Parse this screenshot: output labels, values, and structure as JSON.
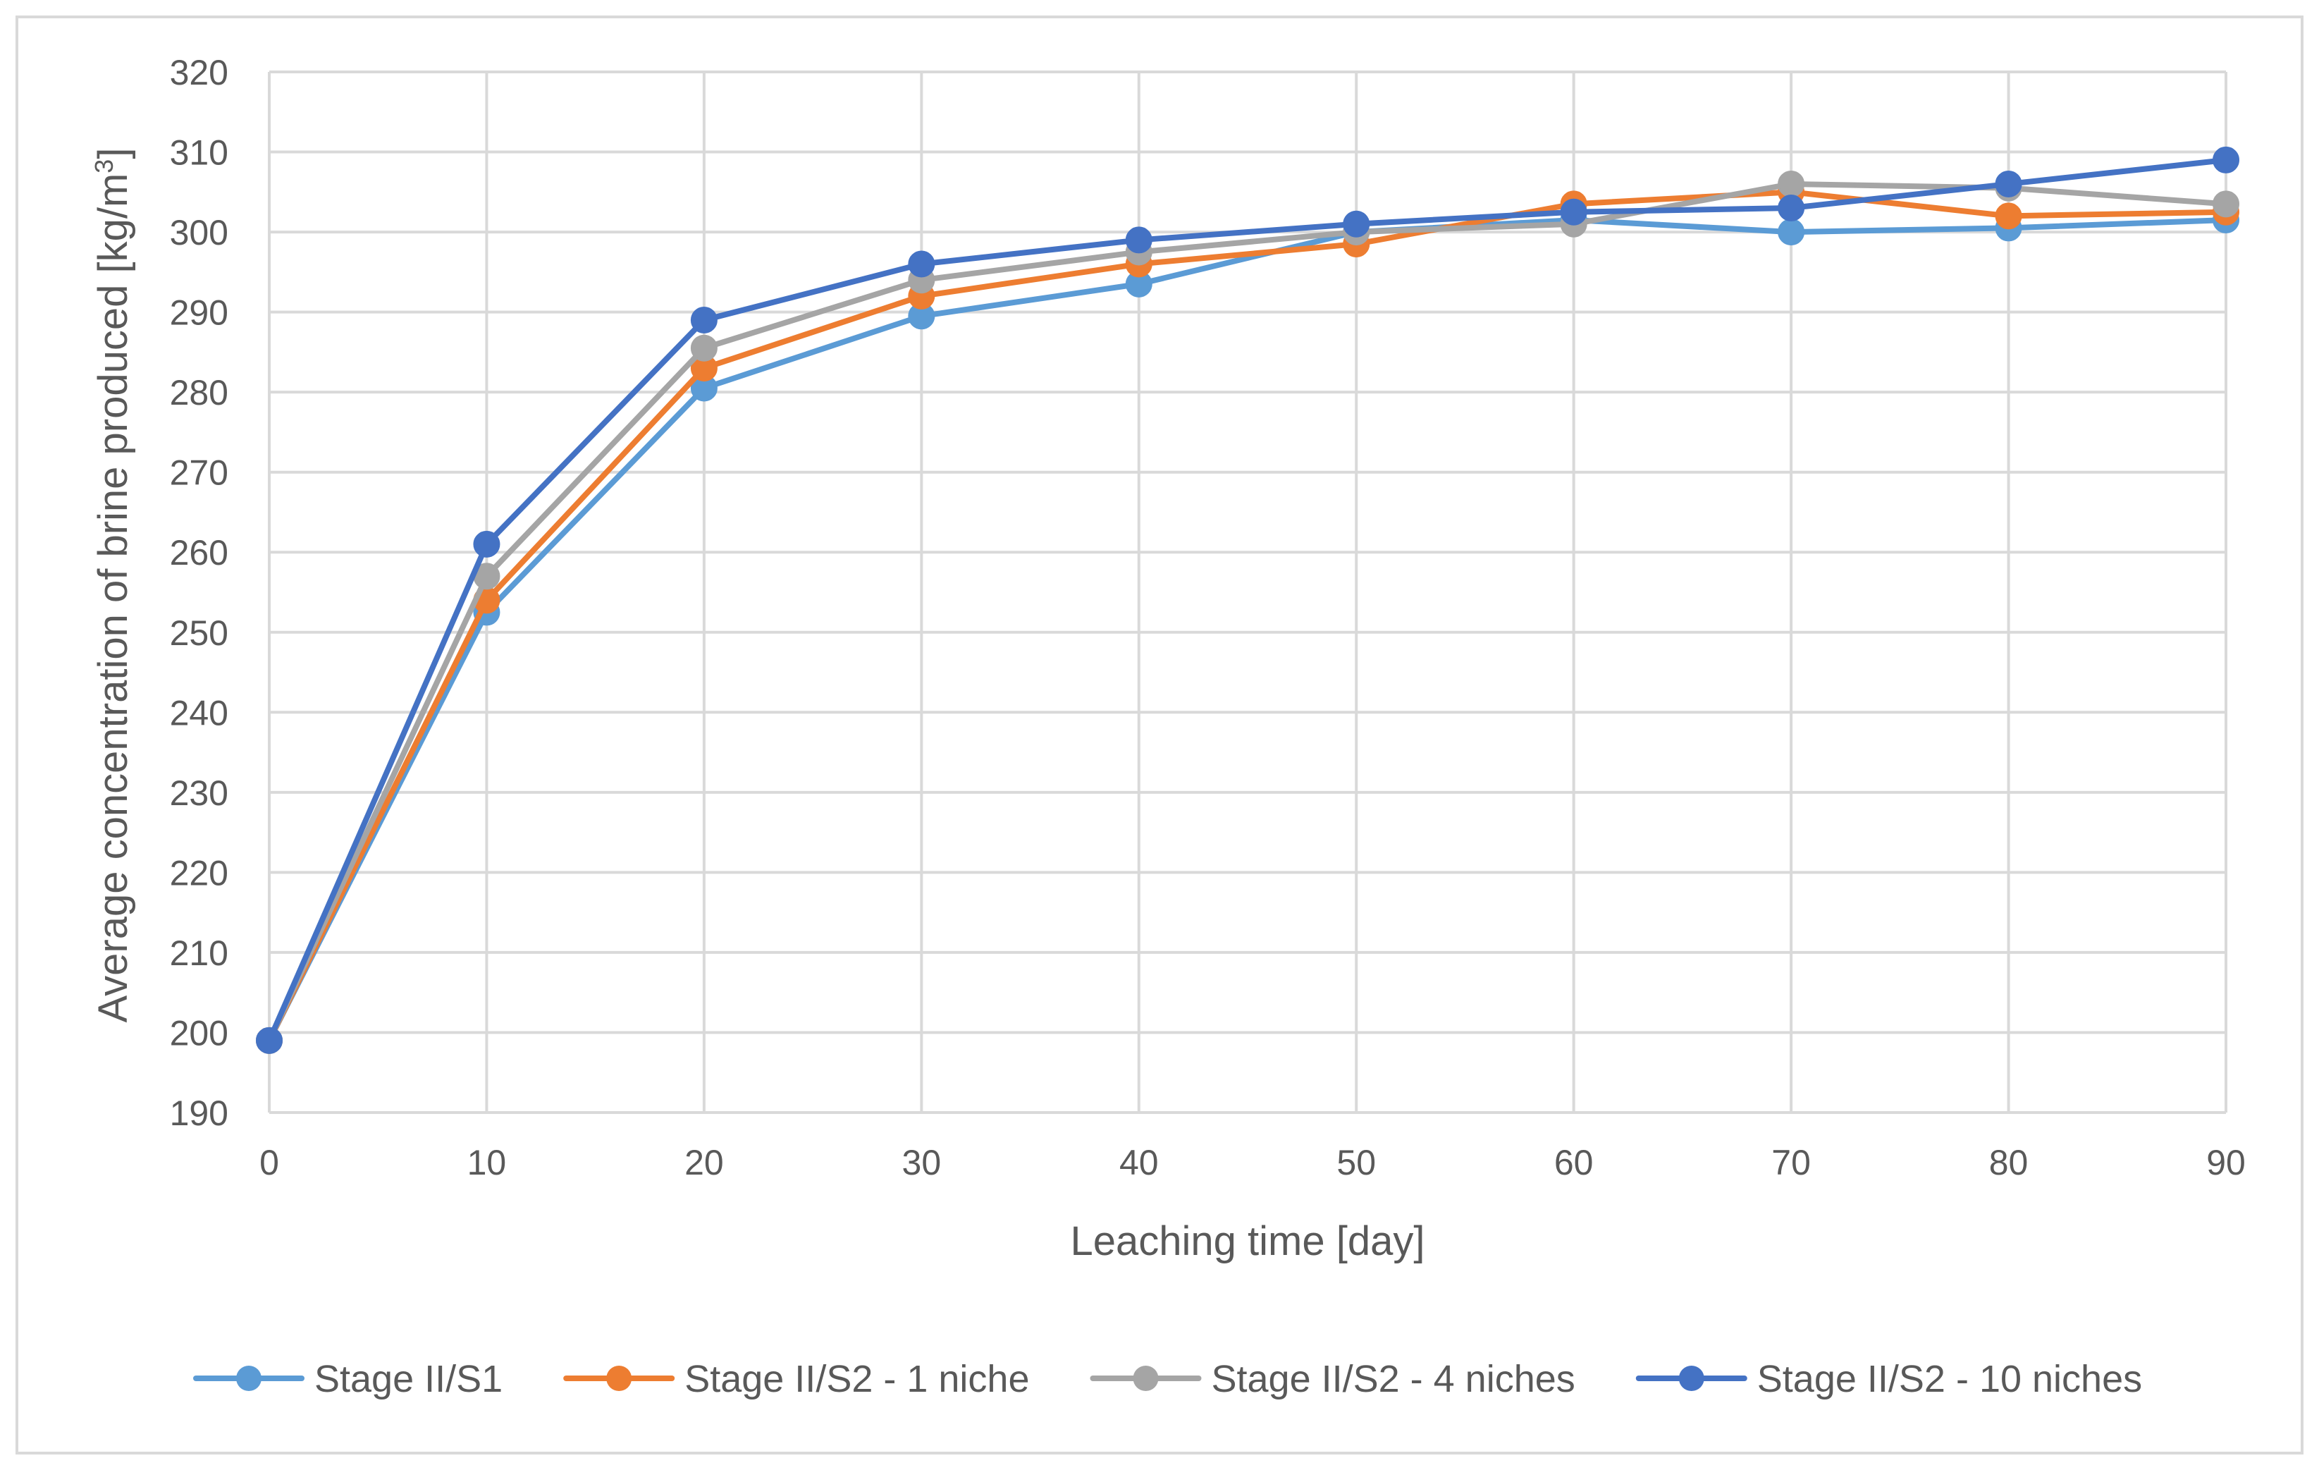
{
  "chart_data": {
    "type": "line",
    "title": "",
    "xlabel": "Leaching time [day]",
    "ylabel_prefix": "Average concentration of brine produced [kg/m",
    "ylabel_sup": "3",
    "ylabel_suffix": "]",
    "x": [
      0,
      10,
      20,
      30,
      40,
      50,
      60,
      70,
      80,
      90
    ],
    "xlim": [
      0,
      90
    ],
    "ylim": [
      190,
      320
    ],
    "x_ticks": [
      0,
      10,
      20,
      30,
      40,
      50,
      60,
      70,
      80,
      90
    ],
    "y_ticks": [
      190,
      200,
      210,
      220,
      230,
      240,
      250,
      260,
      270,
      280,
      290,
      300,
      310,
      320
    ],
    "grid": true,
    "legend_position": "bottom",
    "series": [
      {
        "name": "Stage II/S1",
        "color": "#5B9BD5",
        "values": [
          199,
          252.5,
          280.5,
          289.5,
          293.5,
          300,
          301.5,
          300,
          300.5,
          301.5
        ]
      },
      {
        "name": "Stage II/S2 - 1 niche",
        "color": "#ED7D31",
        "values": [
          199,
          254,
          283,
          292,
          296,
          298.5,
          303.5,
          305,
          302,
          302.5
        ]
      },
      {
        "name": "Stage II/S2 - 4 niches",
        "color": "#A5A5A5",
        "values": [
          199,
          257,
          285.5,
          294,
          297.5,
          300,
          301,
          306,
          305.5,
          303.5
        ]
      },
      {
        "name": "Stage II/S2 - 10 niches",
        "color": "#4472C4",
        "values": [
          199,
          261,
          289,
          296,
          299,
          301,
          302.5,
          303,
          306,
          309
        ]
      }
    ]
  }
}
